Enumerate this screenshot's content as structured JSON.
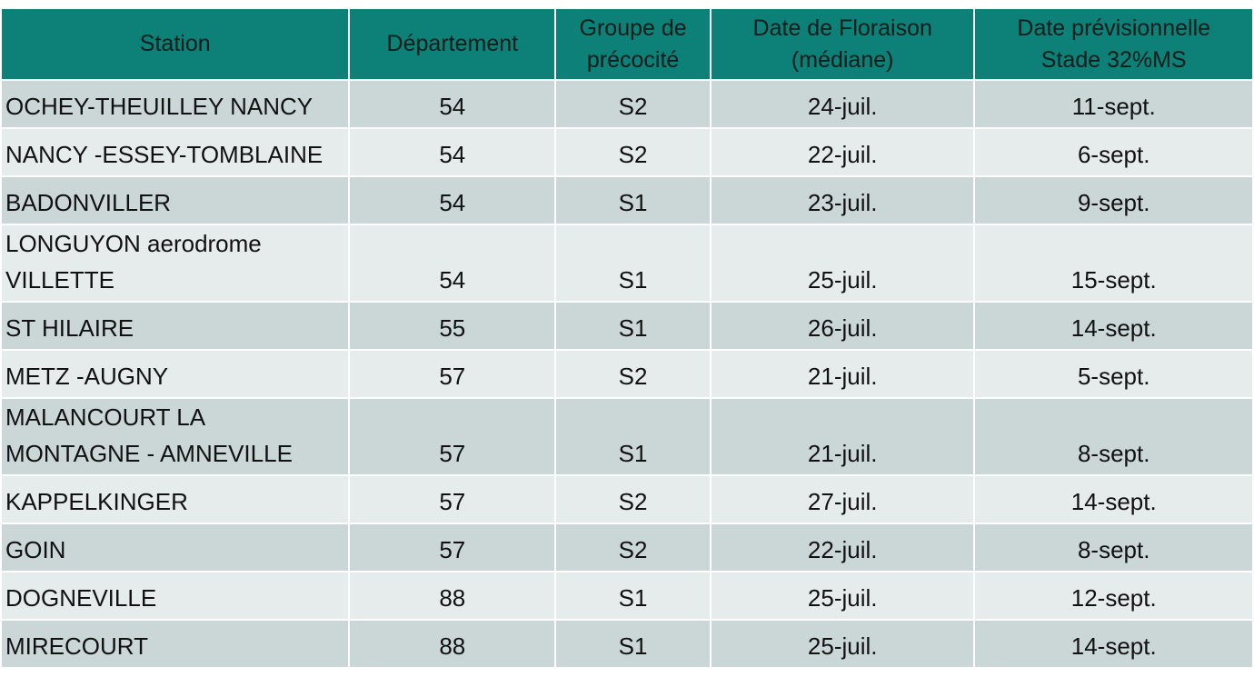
{
  "table": {
    "headers": [
      "Station",
      "Département",
      "Groupe de\nprécocité",
      "Date de Floraison\n(médiane)",
      "Date prévisionnelle\nStade 32%MS"
    ],
    "rows": [
      {
        "station": "OCHEY-THEUILLEY NANCY",
        "departement": "54",
        "groupe": "S2",
        "floraison": "24-juil.",
        "stade": "11-sept."
      },
      {
        "station": "NANCY -ESSEY-TOMBLAINE",
        "departement": "54",
        "groupe": "S2",
        "floraison": "22-juil.",
        "stade": "6-sept."
      },
      {
        "station": "BADONVILLER",
        "departement": "54",
        "groupe": "S1",
        "floraison": "23-juil.",
        "stade": "9-sept."
      },
      {
        "station": "LONGUYON aerodrome\nVILLETTE",
        "departement": "54",
        "groupe": "S1",
        "floraison": "25-juil.",
        "stade": "15-sept."
      },
      {
        "station": "ST HILAIRE",
        "departement": "55",
        "groupe": "S1",
        "floraison": "26-juil.",
        "stade": "14-sept."
      },
      {
        "station": "METZ -AUGNY",
        "departement": "57",
        "groupe": "S2",
        "floraison": "21-juil.",
        "stade": "5-sept."
      },
      {
        "station": "MALANCOURT LA\nMONTAGNE - AMNEVILLE",
        "departement": "57",
        "groupe": "S1",
        "floraison": "21-juil.",
        "stade": "8-sept."
      },
      {
        "station": "KAPPELKINGER",
        "departement": "57",
        "groupe": "S2",
        "floraison": "27-juil.",
        "stade": "14-sept."
      },
      {
        "station": "GOIN",
        "departement": "57",
        "groupe": "S2",
        "floraison": "22-juil.",
        "stade": "8-sept."
      },
      {
        "station": "DOGNEVILLE",
        "departement": "88",
        "groupe": "S1",
        "floraison": "25-juil.",
        "stade": "12-sept."
      },
      {
        "station": "MIRECOURT",
        "departement": "88",
        "groupe": "S1",
        "floraison": "25-juil.",
        "stade": "14-sept."
      }
    ]
  },
  "colors": {
    "header_bg": "#0d8077",
    "row_band_dark": "#cbd7d6",
    "row_band_light": "#e6ecec"
  }
}
